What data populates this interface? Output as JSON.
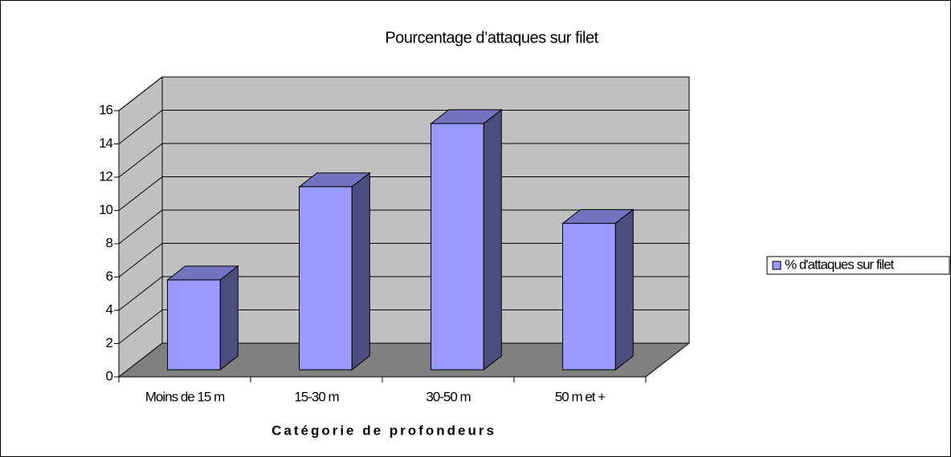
{
  "chart_data": {
    "type": "bar",
    "title": "Pourcentage d’attaques sur filet",
    "x_label": "Catégorie de profondeurs",
    "categories": [
      "Moins de 15 m",
      "15-30 m",
      "30-50 m",
      "50 m et +"
    ],
    "series": [
      {
        "name": "% d'attaques sur filet",
        "color": "#9999ff",
        "values": [
          5.4,
          11,
          14.8,
          8.8
        ]
      }
    ],
    "ylim": [
      0,
      16
    ],
    "yticks": [
      0,
      2,
      4,
      6,
      8,
      10,
      12,
      14,
      16
    ],
    "grid": true,
    "legend": "right"
  }
}
